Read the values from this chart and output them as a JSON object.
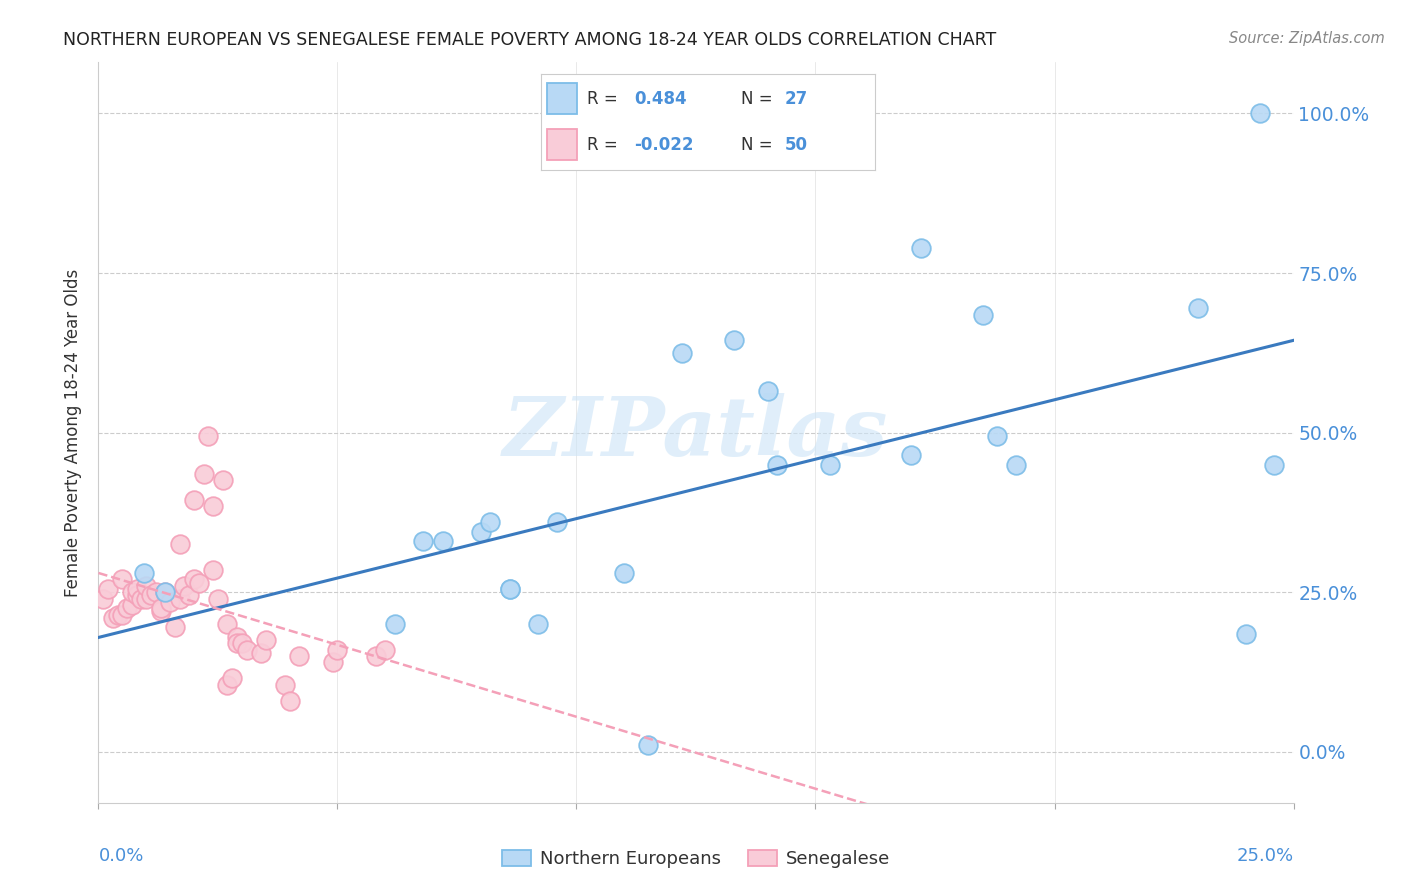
{
  "title": "NORTHERN EUROPEAN VS SENEGALESE FEMALE POVERTY AMONG 18-24 YEAR OLDS CORRELATION CHART",
  "source": "Source: ZipAtlas.com",
  "ylabel": "Female Poverty Among 18-24 Year Olds",
  "ytick_vals": [
    0.0,
    0.25,
    0.5,
    0.75,
    1.0
  ],
  "ytick_labels": [
    "0.0%",
    "25.0%",
    "50.0%",
    "75.0%",
    "100.0%"
  ],
  "xlim": [
    0.0,
    0.25
  ],
  "ylim": [
    -0.08,
    1.08
  ],
  "northern_color": "#7dbde8",
  "northern_face": "#b8d9f5",
  "senegalese_color": "#f4a0b8",
  "senegalese_face": "#f9ccd8",
  "trendline_northern_color": "#3a7abf",
  "trendline_senegalese_color": "#f4a0b8",
  "watermark_text": "ZIPatlas",
  "northern_x": [
    0.0095,
    0.014,
    0.062,
    0.068,
    0.072,
    0.08,
    0.082,
    0.086,
    0.086,
    0.092,
    0.096,
    0.11,
    0.115,
    0.122,
    0.133,
    0.14,
    0.142,
    0.153,
    0.17,
    0.172,
    0.185,
    0.188,
    0.192,
    0.23,
    0.24,
    0.243,
    0.246
  ],
  "northern_y": [
    0.28,
    0.25,
    0.2,
    0.33,
    0.33,
    0.345,
    0.36,
    0.255,
    0.255,
    0.2,
    0.36,
    0.28,
    0.01,
    0.625,
    0.645,
    0.565,
    0.45,
    0.45,
    0.465,
    0.79,
    0.685,
    0.495,
    0.45,
    0.695,
    0.185,
    1.0,
    0.45
  ],
  "senegalese_x": [
    0.001,
    0.002,
    0.003,
    0.004,
    0.005,
    0.005,
    0.006,
    0.007,
    0.007,
    0.008,
    0.008,
    0.009,
    0.01,
    0.01,
    0.011,
    0.012,
    0.013,
    0.013,
    0.014,
    0.015,
    0.016,
    0.017,
    0.017,
    0.018,
    0.019,
    0.02,
    0.02,
    0.021,
    0.022,
    0.023,
    0.024,
    0.024,
    0.025,
    0.026,
    0.027,
    0.027,
    0.028,
    0.029,
    0.029,
    0.03,
    0.031,
    0.034,
    0.035,
    0.039,
    0.04,
    0.042,
    0.049,
    0.05,
    0.058,
    0.06
  ],
  "senegalese_y": [
    0.24,
    0.255,
    0.21,
    0.215,
    0.215,
    0.27,
    0.225,
    0.23,
    0.25,
    0.245,
    0.255,
    0.24,
    0.24,
    0.26,
    0.245,
    0.25,
    0.22,
    0.225,
    0.25,
    0.235,
    0.195,
    0.24,
    0.325,
    0.26,
    0.245,
    0.27,
    0.395,
    0.265,
    0.435,
    0.495,
    0.285,
    0.385,
    0.24,
    0.425,
    0.105,
    0.2,
    0.115,
    0.18,
    0.17,
    0.17,
    0.16,
    0.155,
    0.175,
    0.105,
    0.08,
    0.15,
    0.14,
    0.16,
    0.15,
    0.16
  ]
}
